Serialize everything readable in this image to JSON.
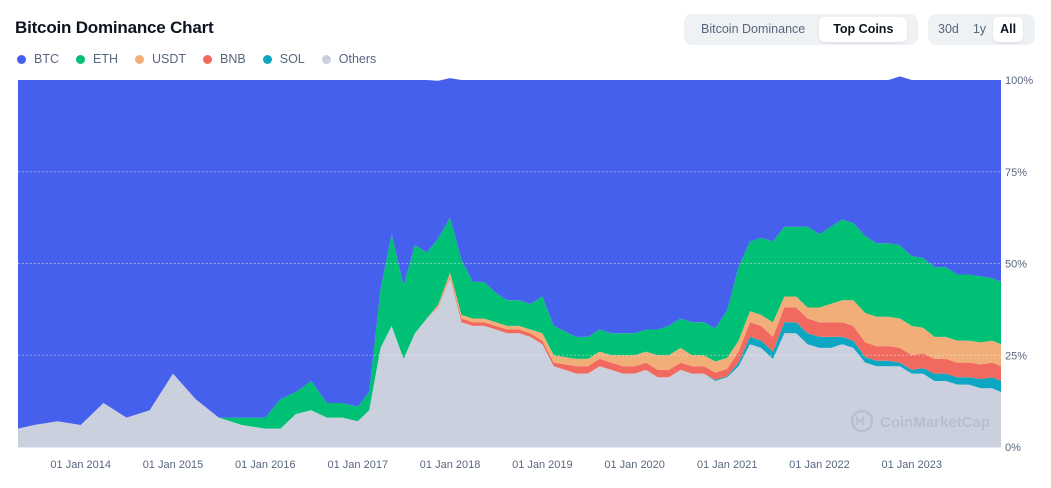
{
  "header": {
    "title": "Bitcoin Dominance Chart"
  },
  "view_toggle": [
    {
      "label": "Bitcoin Dominance",
      "active": false
    },
    {
      "label": "Top Coins",
      "active": true
    }
  ],
  "range_toggle": [
    {
      "label": "30d",
      "active": false
    },
    {
      "label": "1y",
      "active": false
    },
    {
      "label": "All",
      "active": true
    }
  ],
  "watermark": "CoinMarketCap",
  "colors": {
    "BTC": "#4660ee",
    "ETH": "#00c076",
    "USDT": "#f2ae78",
    "BNB": "#f26a5f",
    "SOL": "#0da6c3",
    "Others": "#cbd0de"
  },
  "chart_data": {
    "type": "area",
    "stacked": true,
    "normalized_percent": true,
    "title": "Bitcoin Dominance Chart",
    "x_ticks": [
      "01 Jan 2014",
      "01 Jan 2015",
      "01 Jan 2016",
      "01 Jan 2017",
      "01 Jan 2018",
      "01 Jan 2019",
      "01 Jan 2020",
      "01 Jan 2021",
      "01 Jan 2022",
      "01 Jan 2023"
    ],
    "y_ticks": [
      "100%",
      "75%",
      "50%",
      "25%",
      "0%"
    ],
    "ylim": [
      0,
      100
    ],
    "grid": "horizontal dotted",
    "legend_position": "top-left",
    "x": [
      "2013-04-28",
      "2013-07-01",
      "2013-10-01",
      "2014-01-01",
      "2014-04-01",
      "2014-07-01",
      "2014-10-01",
      "2015-01-01",
      "2015-04-01",
      "2015-07-01",
      "2015-10-01",
      "2016-01-01",
      "2016-03-01",
      "2016-05-01",
      "2016-07-01",
      "2016-09-01",
      "2016-11-01",
      "2017-01-01",
      "2017-02-15",
      "2017-04-01",
      "2017-05-15",
      "2017-07-01",
      "2017-08-15",
      "2017-10-01",
      "2017-11-15",
      "2018-01-01",
      "2018-02-15",
      "2018-04-01",
      "2018-05-15",
      "2018-07-01",
      "2018-08-15",
      "2018-10-01",
      "2018-11-15",
      "2019-01-01",
      "2019-02-15",
      "2019-04-01",
      "2019-05-15",
      "2019-07-01",
      "2019-08-15",
      "2019-10-01",
      "2019-11-15",
      "2020-01-01",
      "2020-02-15",
      "2020-04-01",
      "2020-05-15",
      "2020-07-01",
      "2020-08-15",
      "2020-10-01",
      "2020-11-15",
      "2021-01-01",
      "2021-02-15",
      "2021-04-01",
      "2021-05-15",
      "2021-07-01",
      "2021-08-15",
      "2021-10-01",
      "2021-11-15",
      "2022-01-01",
      "2022-02-15",
      "2022-04-01",
      "2022-05-15",
      "2022-07-01",
      "2022-08-15",
      "2022-10-01",
      "2022-11-15",
      "2023-01-01",
      "2023-02-15",
      "2023-04-01",
      "2023-05-15",
      "2023-07-01",
      "2023-08-15",
      "2023-10-01",
      "2023-11-15",
      "2023-12-20"
    ],
    "series": [
      {
        "name": "Others",
        "values": [
          5,
          6,
          7,
          6,
          12,
          8,
          10,
          20,
          13,
          8,
          6,
          5,
          5,
          9,
          10,
          8,
          8,
          7,
          10,
          27,
          33,
          24,
          31,
          35,
          38,
          46,
          34,
          33,
          33,
          32,
          31,
          31,
          30,
          28,
          22,
          21,
          20,
          20,
          22,
          21,
          20,
          20,
          21,
          19,
          19,
          21,
          20,
          20,
          18,
          19,
          22,
          28,
          27,
          24,
          31,
          31,
          28,
          27,
          27,
          28,
          27,
          23,
          22,
          22,
          22,
          20,
          20,
          18,
          18,
          17,
          17,
          16,
          16,
          15
        ]
      },
      {
        "name": "SOL",
        "values": [
          0,
          0,
          0,
          0,
          0,
          0,
          0,
          0,
          0,
          0,
          0,
          0,
          0,
          0,
          0,
          0,
          0,
          0,
          0,
          0,
          0,
          0,
          0,
          0,
          0,
          0,
          0,
          0,
          0,
          0,
          0,
          0,
          0,
          0,
          0,
          0,
          0,
          0,
          0,
          0,
          0,
          0,
          0,
          0,
          0,
          0,
          0,
          0,
          0.3,
          0.3,
          1,
          2,
          2,
          2,
          3,
          3,
          3,
          3,
          3,
          2,
          2,
          1.5,
          1.5,
          1.5,
          1,
          1,
          1.5,
          2,
          2,
          2,
          2,
          2.5,
          3,
          3
        ]
      },
      {
        "name": "BNB",
        "values": [
          0,
          0,
          0,
          0,
          0,
          0,
          0,
          0,
          0,
          0,
          0,
          0,
          0,
          0,
          0,
          0,
          0,
          0,
          0,
          0,
          0,
          0,
          0,
          0,
          0.3,
          0.5,
          1,
          1,
          1,
          1,
          1,
          1,
          1,
          1,
          1,
          1.5,
          2,
          2,
          2,
          2,
          2,
          2,
          2,
          2,
          2,
          2,
          2,
          2,
          2,
          2,
          3,
          4,
          4,
          4,
          4,
          4,
          4,
          4,
          4,
          4,
          4,
          4,
          4,
          4,
          4,
          4,
          4,
          4,
          4,
          4,
          4,
          4,
          4,
          4
        ]
      },
      {
        "name": "USDT",
        "values": [
          0,
          0,
          0,
          0,
          0,
          0,
          0,
          0,
          0,
          0,
          0,
          0,
          0,
          0,
          0,
          0,
          0,
          0,
          0,
          0,
          0,
          0,
          0,
          0,
          0.5,
          1,
          1,
          1,
          1,
          1,
          1,
          1,
          1,
          2,
          2,
          2,
          2,
          2,
          2,
          2,
          3,
          3,
          3,
          4,
          4,
          4,
          3,
          3,
          3,
          3,
          3,
          3,
          3,
          4,
          3,
          3,
          3,
          4,
          5,
          6,
          7,
          8,
          8,
          8,
          8,
          8,
          7,
          6,
          6,
          6,
          6,
          6,
          6,
          6
        ]
      },
      {
        "name": "ETH",
        "values": [
          0,
          0,
          0,
          0,
          0,
          0,
          0,
          0,
          0,
          0,
          2,
          3,
          8,
          6,
          8,
          4,
          4,
          4,
          5,
          16,
          25,
          20,
          24,
          18,
          18,
          15,
          15,
          10,
          10,
          8,
          7,
          7,
          7,
          10,
          8,
          7,
          6,
          6,
          6,
          6,
          6,
          6,
          6,
          7,
          8,
          8,
          9,
          9,
          9,
          13,
          20,
          19,
          21,
          22,
          19,
          19,
          22,
          20,
          21,
          22,
          21,
          21,
          20,
          20,
          20,
          19,
          19,
          19,
          19,
          18,
          18,
          18,
          17,
          17
        ]
      },
      {
        "name": "BTC",
        "values": [
          95,
          94,
          93,
          94,
          88,
          92,
          90,
          80,
          87,
          92,
          92,
          92,
          87,
          85,
          82,
          88,
          88,
          89,
          85,
          57,
          42,
          56,
          45,
          47,
          43,
          38,
          49,
          55,
          55,
          58,
          60,
          60,
          61,
          59,
          67,
          68.5,
          70,
          70,
          68,
          69,
          69,
          69,
          68,
          68,
          67,
          65,
          66,
          66,
          67.7,
          62.7,
          51,
          44,
          43,
          44,
          40,
          40,
          40,
          42,
          40,
          38,
          39,
          42.5,
          44.5,
          44.5,
          46,
          48,
          48.5,
          51,
          51,
          53,
          53,
          53.5,
          54,
          55
        ]
      }
    ]
  }
}
